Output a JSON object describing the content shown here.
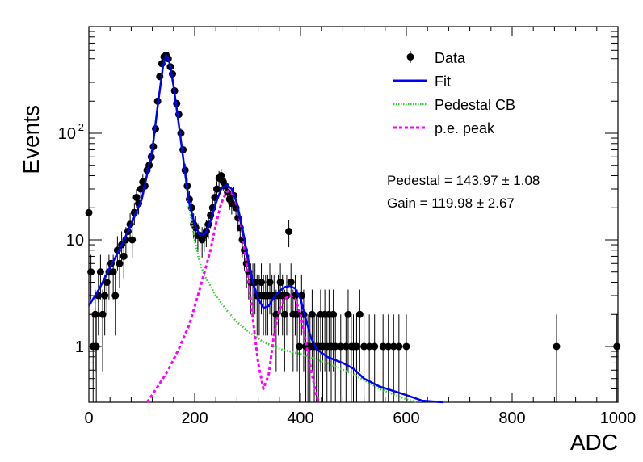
{
  "chart_data": {
    "type": "scatter",
    "title": "",
    "xlabel": "ADC",
    "ylabel": "Events",
    "xlim": [
      0,
      1000
    ],
    "ylim": [
      0.3,
      1000
    ],
    "yscale": "log",
    "x_ticks": [
      0,
      200,
      400,
      600,
      800,
      1000
    ],
    "y_ticks": [
      {
        "value": 1,
        "label": "1"
      },
      {
        "value": 10,
        "label": "10"
      },
      {
        "value": 100,
        "label": "10",
        "exponent": "2"
      }
    ],
    "legend_position": "top-right",
    "legend": [
      {
        "label": "Data",
        "style": "marker"
      },
      {
        "label": "Fit",
        "style": "line",
        "color": "#0000ff"
      },
      {
        "label": "Pedestal CB",
        "style": "dotted",
        "color": "#33cc33"
      },
      {
        "label": "p.e. peak",
        "style": "dashed",
        "color": "#ff00ff"
      }
    ],
    "annotations": [
      "Pedestal = 143.97 ± 1.08",
      "Gain = 119.98 ± 2.67"
    ],
    "data_points": [
      [
        0,
        18
      ],
      [
        4,
        5
      ],
      [
        8,
        1
      ],
      [
        12,
        2
      ],
      [
        14,
        1
      ],
      [
        18,
        3
      ],
      [
        22,
        5
      ],
      [
        26,
        2
      ],
      [
        30,
        3
      ],
      [
        34,
        4
      ],
      [
        38,
        5
      ],
      [
        42,
        6
      ],
      [
        46,
        5
      ],
      [
        50,
        3
      ],
      [
        54,
        8
      ],
      [
        58,
        6
      ],
      [
        62,
        9
      ],
      [
        66,
        7
      ],
      [
        70,
        10
      ],
      [
        74,
        12
      ],
      [
        78,
        14
      ],
      [
        82,
        10
      ],
      [
        86,
        18
      ],
      [
        90,
        25
      ],
      [
        94,
        22
      ],
      [
        98,
        30
      ],
      [
        102,
        35
      ],
      [
        106,
        32
      ],
      [
        110,
        45
      ],
      [
        114,
        50
      ],
      [
        118,
        60
      ],
      [
        122,
        75
      ],
      [
        126,
        110
      ],
      [
        130,
        200
      ],
      [
        134,
        340
      ],
      [
        138,
        450
      ],
      [
        142,
        520
      ],
      [
        146,
        540
      ],
      [
        150,
        500
      ],
      [
        154,
        420
      ],
      [
        158,
        360
      ],
      [
        162,
        250
      ],
      [
        166,
        190
      ],
      [
        170,
        150
      ],
      [
        174,
        100
      ],
      [
        178,
        70
      ],
      [
        182,
        45
      ],
      [
        186,
        32
      ],
      [
        190,
        24
      ],
      [
        194,
        20
      ],
      [
        198,
        14
      ],
      [
        202,
        13
      ],
      [
        206,
        11
      ],
      [
        210,
        11
      ],
      [
        214,
        10
      ],
      [
        218,
        11
      ],
      [
        222,
        12
      ],
      [
        226,
        14
      ],
      [
        230,
        17
      ],
      [
        234,
        20
      ],
      [
        238,
        25
      ],
      [
        242,
        30
      ],
      [
        246,
        38
      ],
      [
        250,
        40
      ],
      [
        254,
        35
      ],
      [
        258,
        32
      ],
      [
        262,
        28
      ],
      [
        266,
        24
      ],
      [
        270,
        22
      ],
      [
        274,
        26
      ],
      [
        278,
        20
      ],
      [
        282,
        16
      ],
      [
        286,
        13
      ],
      [
        290,
        10
      ],
      [
        294,
        8
      ],
      [
        298,
        6
      ],
      [
        302,
        5
      ],
      [
        306,
        4
      ],
      [
        310,
        4
      ],
      [
        314,
        4
      ],
      [
        318,
        3
      ],
      [
        322,
        3
      ],
      [
        326,
        4
      ],
      [
        330,
        3
      ],
      [
        334,
        3
      ],
      [
        338,
        3
      ],
      [
        342,
        4
      ],
      [
        346,
        3
      ],
      [
        350,
        3
      ],
      [
        354,
        2
      ],
      [
        358,
        3
      ],
      [
        362,
        4
      ],
      [
        366,
        3
      ],
      [
        370,
        2
      ],
      [
        374,
        3
      ],
      [
        378,
        12
      ],
      [
        382,
        4
      ],
      [
        386,
        2
      ],
      [
        390,
        3
      ],
      [
        394,
        2
      ],
      [
        398,
        1
      ],
      [
        402,
        3
      ],
      [
        406,
        2
      ],
      [
        410,
        1
      ],
      [
        414,
        1
      ],
      [
        418,
        1
      ],
      [
        422,
        2
      ],
      [
        426,
        1
      ],
      [
        430,
        1
      ],
      [
        434,
        1
      ],
      [
        438,
        2
      ],
      [
        442,
        1
      ],
      [
        446,
        2
      ],
      [
        450,
        1
      ],
      [
        454,
        2
      ],
      [
        458,
        1
      ],
      [
        462,
        2
      ],
      [
        466,
        1
      ],
      [
        476,
        1
      ],
      [
        486,
        1
      ],
      [
        490,
        2
      ],
      [
        496,
        1
      ],
      [
        500,
        1
      ],
      [
        506,
        1
      ],
      [
        512,
        2
      ],
      [
        520,
        1
      ],
      [
        530,
        1
      ],
      [
        540,
        1
      ],
      [
        556,
        1
      ],
      [
        566,
        1
      ],
      [
        576,
        1
      ],
      [
        586,
        1
      ],
      [
        600,
        1
      ],
      [
        884,
        1
      ],
      [
        998,
        1
      ]
    ],
    "series": [
      {
        "name": "Fit",
        "color": "#0000ff",
        "points": [
          [
            0,
            2.4
          ],
          [
            20,
            3.5
          ],
          [
            40,
            5.5
          ],
          [
            60,
            8.5
          ],
          [
            80,
            14
          ],
          [
            100,
            24
          ],
          [
            120,
            70
          ],
          [
            130,
            180
          ],
          [
            140,
            420
          ],
          [
            146,
            540
          ],
          [
            152,
            470
          ],
          [
            160,
            280
          ],
          [
            170,
            120
          ],
          [
            180,
            50
          ],
          [
            190,
            22
          ],
          [
            200,
            14
          ],
          [
            210,
            11
          ],
          [
            220,
            11.5
          ],
          [
            230,
            15
          ],
          [
            240,
            22
          ],
          [
            250,
            30
          ],
          [
            260,
            33
          ],
          [
            270,
            30
          ],
          [
            280,
            22
          ],
          [
            290,
            13
          ],
          [
            300,
            7
          ],
          [
            310,
            4
          ],
          [
            320,
            2.8
          ],
          [
            330,
            2.3
          ],
          [
            340,
            2.4
          ],
          [
            350,
            2.9
          ],
          [
            360,
            3.3
          ],
          [
            370,
            3.6
          ],
          [
            380,
            3.7
          ],
          [
            390,
            3.5
          ],
          [
            400,
            2.8
          ],
          [
            410,
            1.8
          ],
          [
            420,
            1.2
          ],
          [
            430,
            0.95
          ],
          [
            450,
            0.8
          ],
          [
            480,
            0.7
          ],
          [
            500,
            0.62
          ],
          [
            520,
            0.5
          ],
          [
            550,
            0.42
          ],
          [
            600,
            0.35
          ],
          [
            630,
            0.31
          ],
          [
            670,
            0.29
          ]
        ]
      },
      {
        "name": "Pedestal CB",
        "color": "#33cc33",
        "points": [
          [
            0,
            2.4
          ],
          [
            20,
            3.5
          ],
          [
            40,
            5.5
          ],
          [
            60,
            8.5
          ],
          [
            80,
            14
          ],
          [
            100,
            24
          ],
          [
            120,
            70
          ],
          [
            130,
            180
          ],
          [
            140,
            420
          ],
          [
            146,
            540
          ],
          [
            152,
            470
          ],
          [
            160,
            280
          ],
          [
            170,
            120
          ],
          [
            180,
            50
          ],
          [
            190,
            20
          ],
          [
            200,
            10
          ],
          [
            210,
            6
          ],
          [
            220,
            4.5
          ],
          [
            240,
            3
          ],
          [
            260,
            2.2
          ],
          [
            280,
            1.7
          ],
          [
            300,
            1.4
          ],
          [
            330,
            1.1
          ],
          [
            360,
            0.95
          ],
          [
            400,
            0.85
          ],
          [
            450,
            0.7
          ],
          [
            500,
            0.55
          ],
          [
            550,
            0.4
          ],
          [
            600,
            0.32
          ],
          [
            620,
            0.3
          ]
        ]
      },
      {
        "name": "p.e. peak",
        "color": "#ff00ff",
        "points": [
          [
            110,
            0.3
          ],
          [
            130,
            0.42
          ],
          [
            150,
            0.6
          ],
          [
            170,
            0.95
          ],
          [
            190,
            1.6
          ],
          [
            210,
            3.5
          ],
          [
            230,
            8
          ],
          [
            240,
            14
          ],
          [
            250,
            22
          ],
          [
            260,
            28
          ],
          [
            265,
            29
          ],
          [
            270,
            28
          ],
          [
            280,
            21
          ],
          [
            290,
            12
          ],
          [
            300,
            5
          ],
          [
            310,
            1.8
          ],
          [
            320,
            0.7
          ],
          [
            330,
            0.4
          ],
          [
            340,
            0.55
          ],
          [
            350,
            1.3
          ],
          [
            360,
            2.2
          ],
          [
            370,
            2.8
          ],
          [
            380,
            3.0
          ],
          [
            390,
            2.8
          ],
          [
            400,
            2.0
          ],
          [
            410,
            1.1
          ],
          [
            420,
            0.6
          ],
          [
            430,
            0.35
          ],
          [
            435,
            0.3
          ]
        ]
      }
    ]
  }
}
